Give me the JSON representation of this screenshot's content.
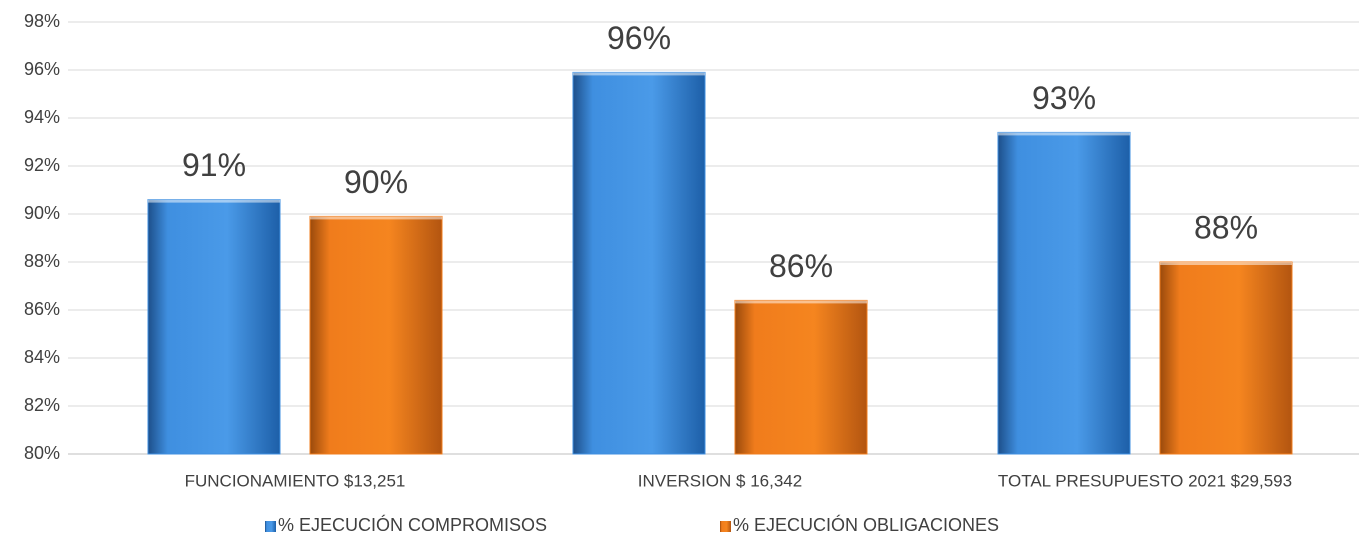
{
  "chart_data": {
    "type": "bar",
    "categories": [
      "FUNCIONAMIENTO $13,251",
      "INVERSION $ 16,342",
      "TOTAL PRESUPUESTO 2021 $29,593"
    ],
    "series": [
      {
        "name": "% EJECUCIÓN COMPROMISOS",
        "color": "#3f8fe0",
        "values": [
          90.6,
          95.9,
          93.4
        ],
        "value_labels": [
          "91%",
          "96%",
          "93%"
        ]
      },
      {
        "name": "% EJECUCIÓN OBLIGACIONES",
        "color": "#f07c1c",
        "values": [
          89.9,
          86.4,
          88.0
        ],
        "value_labels": [
          "90%",
          "86%",
          "88%"
        ]
      }
    ],
    "ylim": [
      80,
      98
    ],
    "yticks": [
      {
        "value": 80,
        "label": "80%"
      },
      {
        "value": 82,
        "label": "82%"
      },
      {
        "value": 84,
        "label": "84%"
      },
      {
        "value": 86,
        "label": "86%"
      },
      {
        "value": 88,
        "label": "88%"
      },
      {
        "value": 90,
        "label": "90%"
      },
      {
        "value": 92,
        "label": "92%"
      },
      {
        "value": 94,
        "label": "94%"
      },
      {
        "value": 96,
        "label": "96%"
      },
      {
        "value": 98,
        "label": "98%"
      }
    ],
    "grid": true,
    "legend": "bottom"
  }
}
